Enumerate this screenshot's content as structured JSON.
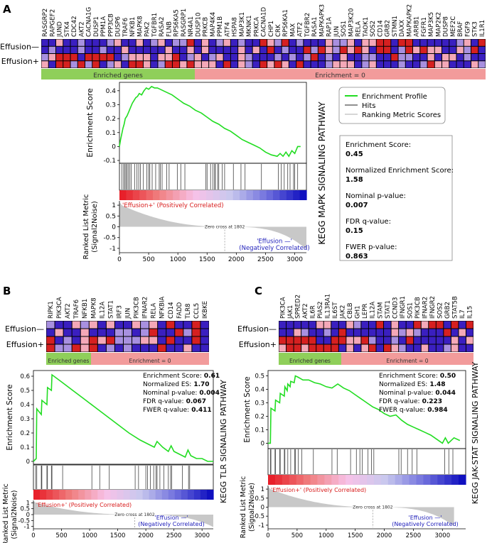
{
  "colors": {
    "es_line": "#22dd22",
    "hits": "#444444",
    "red_strong": "#e8202a",
    "red_mid": "#f08080",
    "pink": "#f7c2e8",
    "blue_light": "#c8c8ee",
    "blue_mid": "#7070dd",
    "blue_strong": "#1010c0",
    "enriched_band": "#8fcf5a",
    "enrichment0_band": "#f29b9b",
    "heat_red": "#d62020",
    "heat_blue": "#3a1fc0",
    "heat_pink": "#f4a8b8",
    "heat_lavender": "#a890e0",
    "pos_label": "#d81b1b",
    "neg_label": "#2222bb",
    "metric_fill": "#c8c8c8"
  },
  "common": {
    "row_labels": [
      "Effusion—",
      "Effusion+"
    ],
    "enriched_label": "Enriched genes",
    "enrichment0_label": "Enrichment = 0",
    "ylabel_es": "Enrichment Score",
    "ylabel_metric_1": "Ranked List Metric",
    "ylabel_metric_2": "(Signal2Noise)",
    "pos_corr": "'Effusion+' (Positively Correlated)",
    "neg_corr_1": "'Effusion —'",
    "neg_corr_2": "(Negatively Correlated)",
    "zero_cross": "Zero cross at 1802",
    "legend": [
      "Enrichment Profile",
      "Hits",
      "Ranking Metric Scores"
    ]
  },
  "panels": [
    {
      "letter": "A",
      "pathway": "KEGG MAPK SIGNALING PATHWAY",
      "genes": [
        "RASGRP2",
        "RAPGEF2",
        "JUND",
        "STK4",
        "CDC42",
        "AKT2",
        "CACNA1G",
        "DUSP1",
        "PPM1A",
        "PPP3CB",
        "DUSP6",
        "TRAF6",
        "NFKB1",
        "MAPK8",
        "PAK2",
        "TGFBR1",
        "RASA2",
        "FLNB",
        "RPS6KA5",
        "RASGRP1",
        "NR4A1",
        "DUSP10",
        "PRKCB",
        "MAP4K4",
        "PPM1B",
        "ATF4",
        "HSPA8",
        "MAP3K1",
        "MKNK1",
        "PRKCA",
        "CACNA1D",
        "CHP1",
        "CRK",
        "RPS6KA1",
        "MAX",
        "ATF2",
        "TGFBR2",
        "RASA1",
        "MAPKAPK3",
        "RAP1A",
        "JUN",
        "SOS1",
        "MAP3K20",
        "RELA",
        "TAOK1",
        "SOS2",
        "CD14",
        "GRB2",
        "STMN1",
        "DAXX",
        "MAPKAPK2",
        "ARRB1",
        "FGFR1",
        "MAP3K5",
        "MAP2K2",
        "DUSP8",
        "MEF2C",
        "BRAF",
        "FGF9",
        "STK3",
        "IL1R1"
      ],
      "stats": {
        "es_label": "Enrichment Score:",
        "es": "0.45",
        "nes_label": "Normalized Enrichment Score:",
        "nes": "1.58",
        "p_label": "Nominal p-value:",
        "p": "0.007",
        "fdr_label": "FDR q-value:",
        "fdr": "0.15",
        "fwer_label": "FWER p-value:",
        "fwer": "0.863"
      },
      "chart_data": {
        "type": "line",
        "title": "KEGG MAPK SIGNALING PATHWAY",
        "ylabel": "Enrichment Score",
        "xlim": [
          0,
          3200
        ],
        "ylim": [
          -0.12,
          0.46
        ],
        "yticks": [
          -0.1,
          0.0,
          0.1,
          0.2,
          0.3,
          0.4
        ],
        "metric_ylim": [
          -1.2,
          1.2
        ],
        "metric_yticks": [
          -1.0,
          -0.5,
          0.0,
          0.5,
          1.0
        ],
        "xticks": [
          0,
          500,
          1000,
          1500,
          2000,
          2500,
          3000
        ],
        "es_x": [
          0,
          20,
          40,
          60,
          80,
          100,
          130,
          160,
          190,
          220,
          250,
          280,
          310,
          340,
          380,
          420,
          460,
          500,
          550,
          600,
          650,
          700,
          750,
          800,
          900,
          1000,
          1100,
          1200,
          1300,
          1400,
          1500,
          1600,
          1700,
          1800,
          1900,
          2000,
          2100,
          2200,
          2300,
          2400,
          2500,
          2600,
          2700,
          2750,
          2800,
          2850,
          2900,
          2950,
          3000,
          3050,
          3100
        ],
        "es_y": [
          0.0,
          0.05,
          0.09,
          0.13,
          0.16,
          0.2,
          0.22,
          0.25,
          0.28,
          0.31,
          0.33,
          0.35,
          0.36,
          0.38,
          0.37,
          0.4,
          0.42,
          0.41,
          0.43,
          0.42,
          0.42,
          0.41,
          0.4,
          0.39,
          0.37,
          0.34,
          0.31,
          0.29,
          0.26,
          0.24,
          0.21,
          0.18,
          0.16,
          0.13,
          0.11,
          0.08,
          0.05,
          0.03,
          0.01,
          -0.01,
          -0.04,
          -0.06,
          -0.07,
          -0.05,
          -0.07,
          -0.04,
          -0.07,
          -0.03,
          -0.05,
          0.0,
          0.0
        ],
        "hits": [
          40,
          70,
          90,
          110,
          130,
          150,
          175,
          200,
          260,
          300,
          330,
          360,
          410,
          470,
          500,
          520,
          560,
          620,
          680,
          700,
          730,
          810,
          850,
          990,
          1050,
          1120,
          1480,
          1500,
          1560,
          1600,
          1630,
          1640,
          1680,
          1700,
          1760,
          1800,
          1950,
          2080,
          2150,
          2430,
          2720,
          2770,
          2820,
          2880,
          2920,
          2980,
          3000,
          3050
        ],
        "zero_cross": 1802
      }
    },
    {
      "letter": "B",
      "pathway": "KEGG TLR SIGNALING PATHWAY",
      "genes": [
        "RIPK1",
        "PIK3CA",
        "AKT2",
        "TRAF6",
        "NFKB1",
        "MAPK8",
        "IL12A",
        "STAT1",
        "IRF3",
        "JUN",
        "PIK3CB",
        "IFNAR2",
        "RELA",
        "NFKBIA",
        "CD14",
        "FADD",
        "TLR8",
        "CCL5",
        "IKBKE"
      ],
      "stats": {
        "es_label": "Enrichment Score:",
        "es": "0.61",
        "nes_label": "Normalized ES:",
        "nes": "1.70",
        "p_label": "Nominal p-value:",
        "p": "0.004",
        "fdr_label": "FDR q-value:",
        "fdr": "0.067",
        "fwer_label": "FWER q-value:",
        "fwer": "0.411"
      },
      "chart_data": {
        "type": "line",
        "title": "KEGG TLR SIGNALING PATHWAY",
        "ylabel": "Enrichment Score",
        "xlim": [
          0,
          3200
        ],
        "ylim": [
          -0.02,
          0.64
        ],
        "yticks": [
          0.0,
          0.1,
          0.2,
          0.3,
          0.4,
          0.5,
          0.6
        ],
        "metric_ylim": [
          -1.2,
          1.2
        ],
        "metric_yticks": [
          -1.0,
          -0.5,
          0.0,
          0.5,
          1.0
        ],
        "xticks": [
          0,
          500,
          1000,
          1500,
          2000,
          2500,
          3000
        ],
        "es_x": [
          0,
          50,
          60,
          140,
          150,
          240,
          250,
          320,
          330,
          500,
          700,
          900,
          1100,
          1300,
          1500,
          1700,
          1900,
          2000,
          2100,
          2150,
          2200,
          2300,
          2400,
          2450,
          2500,
          2600,
          2700,
          2750,
          2800,
          2900,
          3000,
          3100,
          3200
        ],
        "es_y": [
          0.0,
          0.02,
          0.37,
          0.33,
          0.43,
          0.4,
          0.52,
          0.5,
          0.61,
          0.56,
          0.5,
          0.44,
          0.38,
          0.32,
          0.26,
          0.2,
          0.15,
          0.13,
          0.11,
          0.1,
          0.14,
          0.1,
          0.07,
          0.11,
          0.07,
          0.05,
          0.03,
          0.08,
          0.04,
          0.02,
          0.02,
          0.0,
          0.0
        ],
        "hits": [
          40,
          60,
          140,
          150,
          240,
          250,
          320,
          330,
          520,
          1040,
          1180,
          1350,
          1810,
          1870,
          2000,
          2030,
          2080,
          2140,
          2180,
          2200,
          2250,
          2320,
          2400,
          2440,
          2460,
          2650,
          2760,
          2780
        ],
        "zero_cross": 1802
      }
    },
    {
      "letter": "C",
      "pathway": "KEGG JAK-STAT SIGNALING PATHWAY",
      "genes": [
        "PIK3CA",
        "JAK1",
        "SPRED2",
        "AKT2",
        "IL6R",
        "PIAS2",
        "IL13RA1",
        "IL6ST",
        "JAK2",
        "CBLB",
        "GH1",
        "LEPR",
        "IL12A",
        "STAM",
        "STAT1",
        "CCND3",
        "IFNGR1",
        "SOS1",
        "PIK3CB",
        "IFNAR2",
        "IFNGR2",
        "SOS2",
        "GRB2",
        "STAT5B",
        "IL7",
        "IL15"
      ],
      "stats": {
        "es_label": "Enrichment Score:",
        "es": "0.50",
        "nes_label": "Normalized ES:",
        "nes": "1.48",
        "p_label": "Nominal p-value:",
        "p": "0.044",
        "fdr_label": "FDR q-value:",
        "fdr": "0.223",
        "fwer_label": "FWER q-value:",
        "fwer": "0.984"
      },
      "chart_data": {
        "type": "line",
        "title": "KEGG JAK-STAT SIGNALING PATHWAY",
        "ylabel": "Enrichment Score",
        "xlim": [
          0,
          3400
        ],
        "ylim": [
          -0.04,
          0.54
        ],
        "yticks": [
          0.0,
          0.1,
          0.2,
          0.3,
          0.4,
          0.5
        ],
        "metric_ylim": [
          -1.2,
          1.2
        ],
        "metric_yticks": [
          -1.0,
          -0.5,
          0.0,
          0.5,
          1.0
        ],
        "xticks": [
          0,
          500,
          1000,
          1500,
          2000,
          2500,
          3000
        ],
        "es_x": [
          0,
          40,
          50,
          120,
          130,
          200,
          210,
          280,
          290,
          330,
          340,
          380,
          390,
          450,
          470,
          520,
          560,
          600,
          700,
          800,
          900,
          1000,
          1100,
          1200,
          1300,
          1400,
          1500,
          1600,
          1700,
          1800,
          1900,
          2000,
          2100,
          2200,
          2300,
          2400,
          2500,
          2600,
          2700,
          2800,
          2900,
          3000,
          3050,
          3100,
          3200,
          3300
        ],
        "es_y": [
          0.0,
          0.0,
          0.26,
          0.24,
          0.32,
          0.3,
          0.37,
          0.35,
          0.42,
          0.39,
          0.44,
          0.42,
          0.46,
          0.45,
          0.5,
          0.49,
          0.48,
          0.47,
          0.47,
          0.45,
          0.44,
          0.42,
          0.41,
          0.44,
          0.41,
          0.39,
          0.36,
          0.33,
          0.3,
          0.27,
          0.25,
          0.22,
          0.2,
          0.21,
          0.17,
          0.14,
          0.12,
          0.1,
          0.08,
          0.06,
          0.03,
          0.0,
          0.04,
          0.0,
          0.04,
          0.02
        ],
        "hits": [
          40,
          50,
          120,
          130,
          200,
          210,
          280,
          290,
          340,
          390,
          460,
          470,
          520,
          580,
          780,
          1100,
          1190,
          1420,
          1520,
          1580,
          1620,
          1720,
          1780,
          1820,
          2250,
          2290,
          2400,
          2480,
          2560,
          3040,
          3110,
          3180
        ],
        "zero_cross": 1802
      }
    }
  ]
}
